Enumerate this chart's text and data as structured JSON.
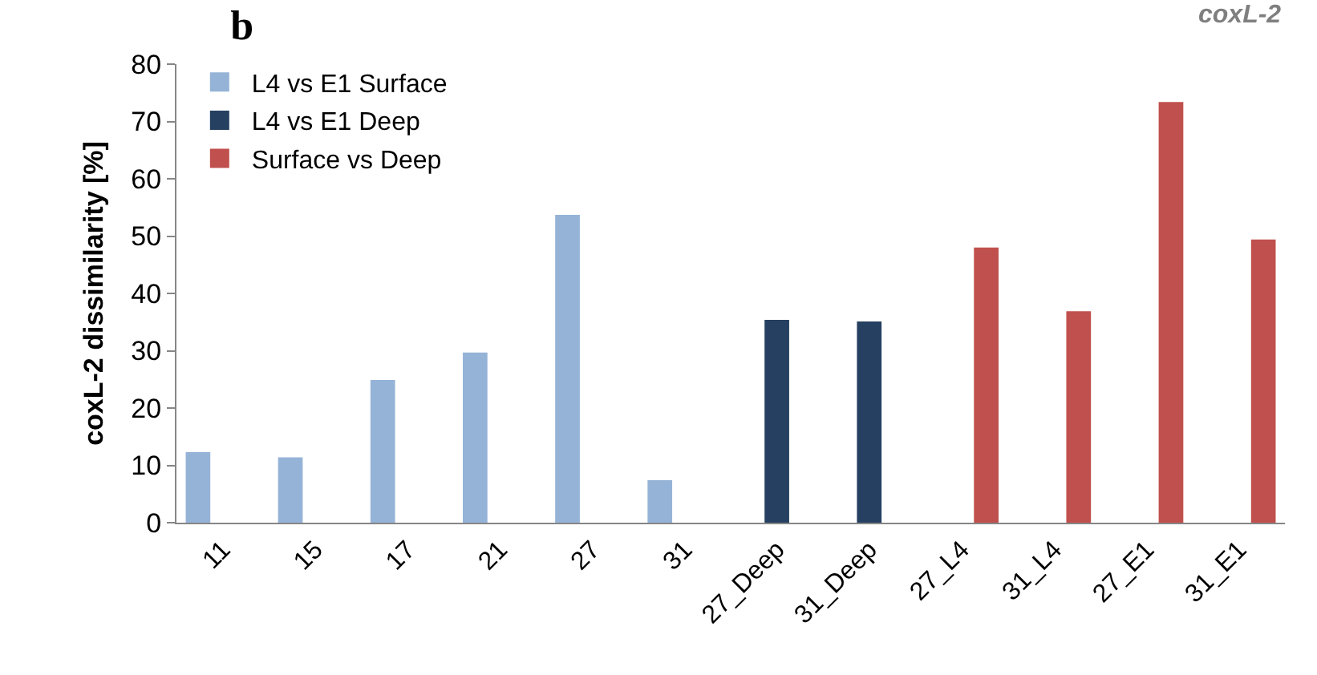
{
  "chart_data": {
    "type": "bar",
    "title": "b",
    "ylabel": "coxL-2 dissimilarity [%]",
    "annotations": [
      "coxL-2"
    ],
    "categories": [
      "11",
      "15",
      "17",
      "21",
      "27",
      "31",
      "27_Deep",
      "31_Deep",
      "27_L4",
      "31_L4",
      "27_E1",
      "31_E1"
    ],
    "series": [
      {
        "name": "L4 vs E1 Surface",
        "color": "#95b3d7",
        "values": [
          12.3,
          11.4,
          24.9,
          29.7,
          53.7,
          7.4,
          null,
          null,
          null,
          null,
          null,
          null
        ]
      },
      {
        "name": "L4 vs E1 Deep",
        "color": "#254061",
        "values": [
          null,
          null,
          null,
          null,
          null,
          null,
          35.4,
          35.1,
          null,
          null,
          null,
          null
        ]
      },
      {
        "name": "Surface vs Deep",
        "color": "#c0504d",
        "values": [
          null,
          null,
          null,
          null,
          null,
          null,
          null,
          null,
          48,
          36.9,
          73.4,
          49.4
        ]
      }
    ],
    "ylim": [
      0,
      80
    ],
    "yticks": [
      0,
      10,
      20,
      30,
      40,
      50,
      60,
      70,
      80
    ],
    "grid": false,
    "legend": "top left"
  }
}
